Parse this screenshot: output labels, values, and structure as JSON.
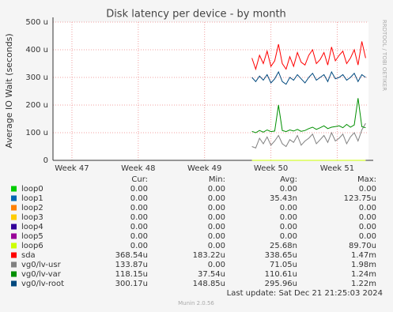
{
  "chart_data": {
    "type": "line",
    "title": "Disk latency per device - by month",
    "y_label": "Average IO Wait (seconds)",
    "side_text": "RRDTOOL / TOBI OETIKER",
    "ylim": [
      0,
      500
    ],
    "yticks": [
      0,
      {
        "value": 100,
        "label": "100 u"
      },
      {
        "value": 200,
        "label": "200 u"
      },
      {
        "value": 300,
        "label": "300 u"
      },
      {
        "value": 400,
        "label": "400 u"
      },
      {
        "value": 500,
        "label": "500 u"
      }
    ],
    "xlim": [
      0,
      33.3
    ],
    "xticks": [
      {
        "value": 2,
        "label": "Week 47"
      },
      {
        "value": 9,
        "label": "Week 48"
      },
      {
        "value": 16,
        "label": "Week 49"
      },
      {
        "value": 23,
        "label": "Week 50"
      },
      {
        "value": 30,
        "label": "Week 51"
      }
    ],
    "grid": true,
    "x": [
      21.0,
      21.4,
      21.8,
      22.2,
      22.6,
      23.0,
      23.4,
      23.8,
      24.2,
      24.6,
      25.0,
      25.4,
      25.8,
      26.2,
      26.6,
      27.0,
      27.4,
      27.8,
      28.2,
      28.6,
      29.0,
      29.4,
      29.8,
      30.2,
      30.6,
      31.0,
      31.4,
      31.8,
      32.2,
      32.6,
      33.0
    ],
    "series": [
      {
        "name": "loop0",
        "color": "#00cc00",
        "values": [
          0,
          0,
          0,
          0,
          0,
          0,
          0,
          0,
          0,
          0,
          0,
          0,
          0,
          0,
          0,
          0,
          0,
          0,
          0,
          0,
          0,
          0,
          0,
          0,
          0,
          0,
          0,
          0,
          0,
          0,
          0
        ]
      },
      {
        "name": "loop1",
        "color": "#0066b3",
        "values": [
          0,
          0,
          0,
          0,
          0,
          0,
          0,
          0,
          0,
          0,
          0,
          0,
          0,
          0,
          0,
          0,
          0,
          0,
          0,
          0,
          0,
          0,
          0,
          0,
          0,
          0,
          0,
          0,
          0,
          0,
          0
        ]
      },
      {
        "name": "loop2",
        "color": "#ff8000",
        "values": [
          0,
          0,
          0,
          0,
          0,
          0,
          0,
          0,
          0,
          0,
          0,
          0,
          0,
          0,
          0,
          0,
          0,
          0,
          0,
          0,
          0,
          0,
          0,
          0,
          0,
          0,
          0,
          0,
          0,
          0,
          0
        ]
      },
      {
        "name": "loop3",
        "color": "#ffcc00",
        "values": [
          0,
          0,
          0,
          0,
          0,
          0,
          0,
          0,
          0,
          0,
          0,
          0,
          0,
          0,
          0,
          0,
          0,
          0,
          0,
          0,
          0,
          0,
          0,
          0,
          0,
          0,
          0,
          0,
          0,
          0,
          0
        ]
      },
      {
        "name": "loop4",
        "color": "#330099",
        "values": [
          0,
          0,
          0,
          0,
          0,
          0,
          0,
          0,
          0,
          0,
          0,
          0,
          0,
          0,
          0,
          0,
          0,
          0,
          0,
          0,
          0,
          0,
          0,
          0,
          0,
          0,
          0,
          0,
          0,
          0,
          0
        ]
      },
      {
        "name": "loop5",
        "color": "#990099",
        "values": [
          0,
          0,
          0,
          0,
          0,
          0,
          0,
          0,
          0,
          0,
          0,
          0,
          0,
          0,
          0,
          0,
          0,
          0,
          0,
          0,
          0,
          0,
          0,
          0,
          0,
          0,
          0,
          0,
          0,
          0,
          0
        ]
      },
      {
        "name": "loop6",
        "color": "#ccff00",
        "values": [
          0,
          0,
          0,
          0,
          0,
          0,
          0,
          0,
          0,
          0,
          0,
          0,
          0,
          0,
          0,
          0,
          0,
          0,
          0,
          0,
          0,
          0,
          0,
          0,
          0,
          0,
          0,
          0,
          0,
          0,
          0
        ]
      },
      {
        "name": "sda",
        "color": "#ff0000",
        "values": [
          370,
          330,
          380,
          350,
          395,
          340,
          360,
          420,
          350,
          330,
          375,
          340,
          390,
          355,
          345,
          380,
          400,
          350,
          365,
          390,
          345,
          410,
          360,
          380,
          395,
          350,
          370,
          400,
          345,
          430,
          370
        ]
      },
      {
        "name": "vg0/lv-usr",
        "color": "#808080",
        "values": [
          50,
          45,
          80,
          60,
          85,
          55,
          70,
          90,
          60,
          50,
          75,
          65,
          90,
          55,
          70,
          80,
          95,
          60,
          75,
          90,
          65,
          100,
          70,
          80,
          95,
          60,
          85,
          100,
          70,
          110,
          134
        ]
      },
      {
        "name": "vg0/lv-var",
        "color": "#008f00",
        "values": [
          105,
          100,
          108,
          102,
          110,
          104,
          106,
          200,
          108,
          104,
          110,
          106,
          112,
          105,
          108,
          115,
          120,
          112,
          118,
          125,
          115,
          120,
          122,
          125,
          118,
          130,
          120,
          128,
          225,
          122,
          118
        ]
      },
      {
        "name": "vg0/lv-root",
        "color": "#00487d",
        "values": [
          300,
          285,
          305,
          290,
          310,
          280,
          295,
          320,
          285,
          275,
          300,
          290,
          310,
          295,
          280,
          300,
          315,
          290,
          300,
          310,
          285,
          320,
          295,
          300,
          310,
          290,
          300,
          315,
          285,
          310,
          300
        ]
      }
    ],
    "legend_table": {
      "columns": [
        "Cur:",
        "Min:",
        "Avg:",
        "Max:"
      ],
      "rows": [
        [
          "0.00",
          "0.00",
          "0.00",
          "0.00"
        ],
        [
          "0.00",
          "0.00",
          "35.43n",
          "123.75u"
        ],
        [
          "0.00",
          "0.00",
          "0.00",
          "0.00"
        ],
        [
          "0.00",
          "0.00",
          "0.00",
          "0.00"
        ],
        [
          "0.00",
          "0.00",
          "0.00",
          "0.00"
        ],
        [
          "0.00",
          "0.00",
          "0.00",
          "0.00"
        ],
        [
          "0.00",
          "0.00",
          "25.68n",
          "89.70u"
        ],
        [
          "368.54u",
          "183.22u",
          "338.65u",
          "1.47m"
        ],
        [
          "133.87u",
          "0.00",
          "71.05u",
          "1.98m"
        ],
        [
          "118.15u",
          "37.54u",
          "110.61u",
          "1.24m"
        ],
        [
          "300.17u",
          "148.85u",
          "295.96u",
          "1.22m"
        ]
      ]
    },
    "last_update": "Last update: Sat Dec 21 21:25:03 2024",
    "footer": "Munin 2.0.56"
  }
}
